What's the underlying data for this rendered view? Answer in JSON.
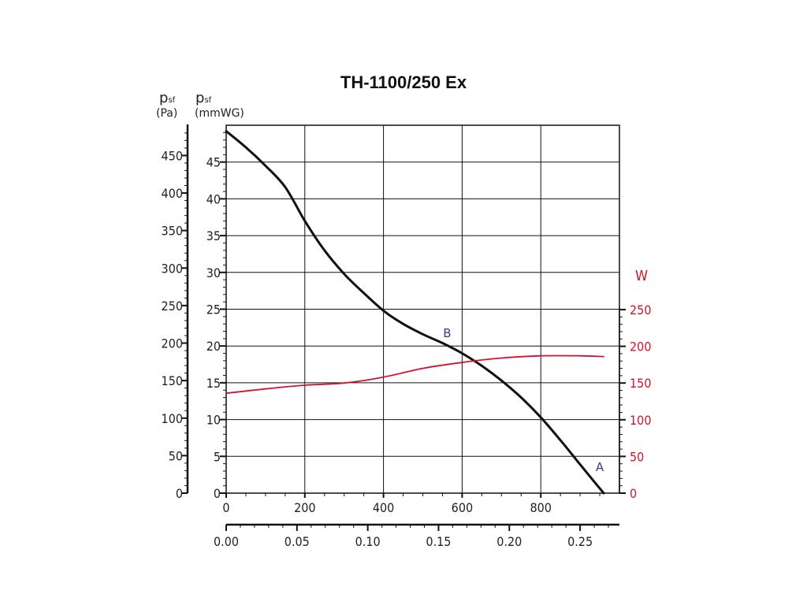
{
  "chart_data": {
    "type": "line",
    "title": "TH-1100/250 Ex",
    "axes": {
      "y_left_pa": {
        "label_main": "p",
        "label_sub": "sf",
        "unit": "(Pa)",
        "ticks": [
          "0",
          "50",
          "100",
          "150",
          "200",
          "250",
          "300",
          "350",
          "400",
          "450"
        ],
        "range": [
          0,
          490
        ]
      },
      "y_left_mmwg": {
        "label_main": "p",
        "label_sub": "sf",
        "unit": "(mmWG)",
        "ticks": [
          "0",
          "5",
          "10",
          "15",
          "20",
          "25",
          "30",
          "35",
          "40",
          "45"
        ],
        "range": [
          0,
          50
        ]
      },
      "y_right_w": {
        "label": "W",
        "ticks": [
          "0",
          "50",
          "100",
          "150",
          "200",
          "250"
        ],
        "range": [
          0,
          250
        ],
        "color": "#d0142c"
      },
      "x_top_m3h": {
        "ticks": [
          "0",
          "200",
          "400",
          "600",
          "800"
        ],
        "range": [
          0,
          1000
        ]
      },
      "x_bottom_m3s": {
        "ticks": [
          "0.00",
          "0.05",
          "0.10",
          "0.15",
          "0.20",
          "0.25"
        ],
        "range": [
          0,
          0.2778
        ]
      }
    },
    "grid": true,
    "series": [
      {
        "curve": "pressure",
        "color": "#111111",
        "axis": "y_left_mmwg",
        "x": [
          0,
          50,
          100,
          150,
          200,
          250,
          300,
          350,
          400,
          450,
          500,
          550,
          600,
          650,
          700,
          750,
          800,
          850,
          900,
          960
        ],
        "y": [
          49.2,
          47.0,
          44.5,
          41.6,
          37.0,
          33.0,
          29.8,
          27.2,
          24.8,
          23.0,
          21.6,
          20.4,
          19.0,
          17.3,
          15.3,
          13.0,
          10.3,
          7.2,
          3.9,
          0.0
        ]
      },
      {
        "curve": "power",
        "color": "#d0142c",
        "axis": "y_right_w",
        "x": [
          0,
          100,
          200,
          300,
          400,
          500,
          600,
          700,
          800,
          900,
          960
        ],
        "y": [
          136,
          142,
          147,
          150,
          158,
          170,
          178,
          184,
          187,
          187,
          186
        ]
      }
    ],
    "annotations": [
      {
        "text": "A",
        "x": 950,
        "y_mmwg": 3.0
      },
      {
        "text": "B",
        "x": 562,
        "y_mmwg": 21.2
      }
    ]
  }
}
